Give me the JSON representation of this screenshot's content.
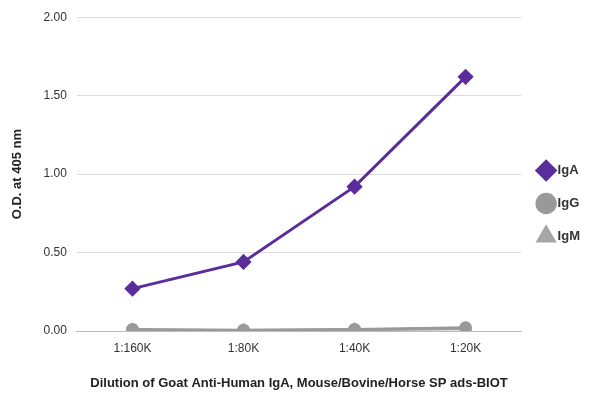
{
  "chart_data": {
    "type": "line",
    "x_label": "Dilution of Goat Anti-Human IgA, Mouse/Bovine/Horse SP ads-BIOT",
    "y_label": "O.D. at 405 nm",
    "categories": [
      "1:160K",
      "1:80K",
      "1:40K",
      "1:20K"
    ],
    "series": [
      {
        "name": "IgA",
        "color": "#5a2d9b",
        "marker": "diamond",
        "values": [
          0.27,
          0.44,
          0.92,
          1.62
        ]
      },
      {
        "name": "IgG",
        "color": "#999999",
        "marker": "circle",
        "values": [
          0.01,
          0.005,
          0.01,
          0.02
        ]
      },
      {
        "name": "IgM",
        "color": "#a6a6a6",
        "marker": "triangle",
        "values": [
          0.005,
          0.003,
          0.008,
          0.015
        ]
      }
    ],
    "ylim": [
      0,
      2
    ],
    "yticks": [
      {
        "value": 0,
        "label": "0.00"
      },
      {
        "value": 0.5,
        "label": "0.50"
      },
      {
        "value": 1,
        "label": "1.00"
      },
      {
        "value": 1.5,
        "label": "1.50"
      },
      {
        "value": 2,
        "label": "2.00"
      }
    ],
    "grid": true,
    "legend": "right"
  }
}
